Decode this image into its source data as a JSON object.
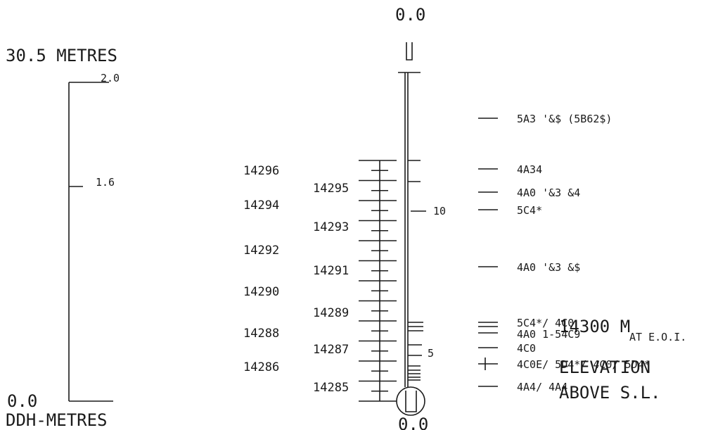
{
  "depth_scale": {
    "title": "30.5 METRES",
    "top_label": "2.0",
    "mid_label": "1.6",
    "bottom_label": "0.0",
    "axis_label": "DDH-METRES"
  },
  "hole": {
    "top_label": "0.0",
    "bottom_label": "0.0",
    "depth_markers": [
      "10",
      "5"
    ]
  },
  "elevation_ticks": {
    "left": [
      "14296",
      "14294",
      "14292",
      "14290",
      "14288",
      "14286"
    ],
    "right": [
      "14295",
      "14293",
      "14291",
      "14289",
      "14287",
      "14285"
    ]
  },
  "annotations": [
    "5A3  '&$ (5B62$)",
    "4A34",
    "4A0  '&3 &4",
    "5C4*",
    "4A0  '&3 &$",
    "5C4*/ 4C0",
    "4A0  1-54C9",
    "4C0",
    "4C0E/ 5D4*/ 4C0/ 5D4*",
    "4A4/ 4A4"
  ],
  "elevation_note": {
    "value": "14300 M",
    "suffix": "AT E.O.I.",
    "line2": "ELEVATION",
    "line3": "ABOVE S.L."
  }
}
